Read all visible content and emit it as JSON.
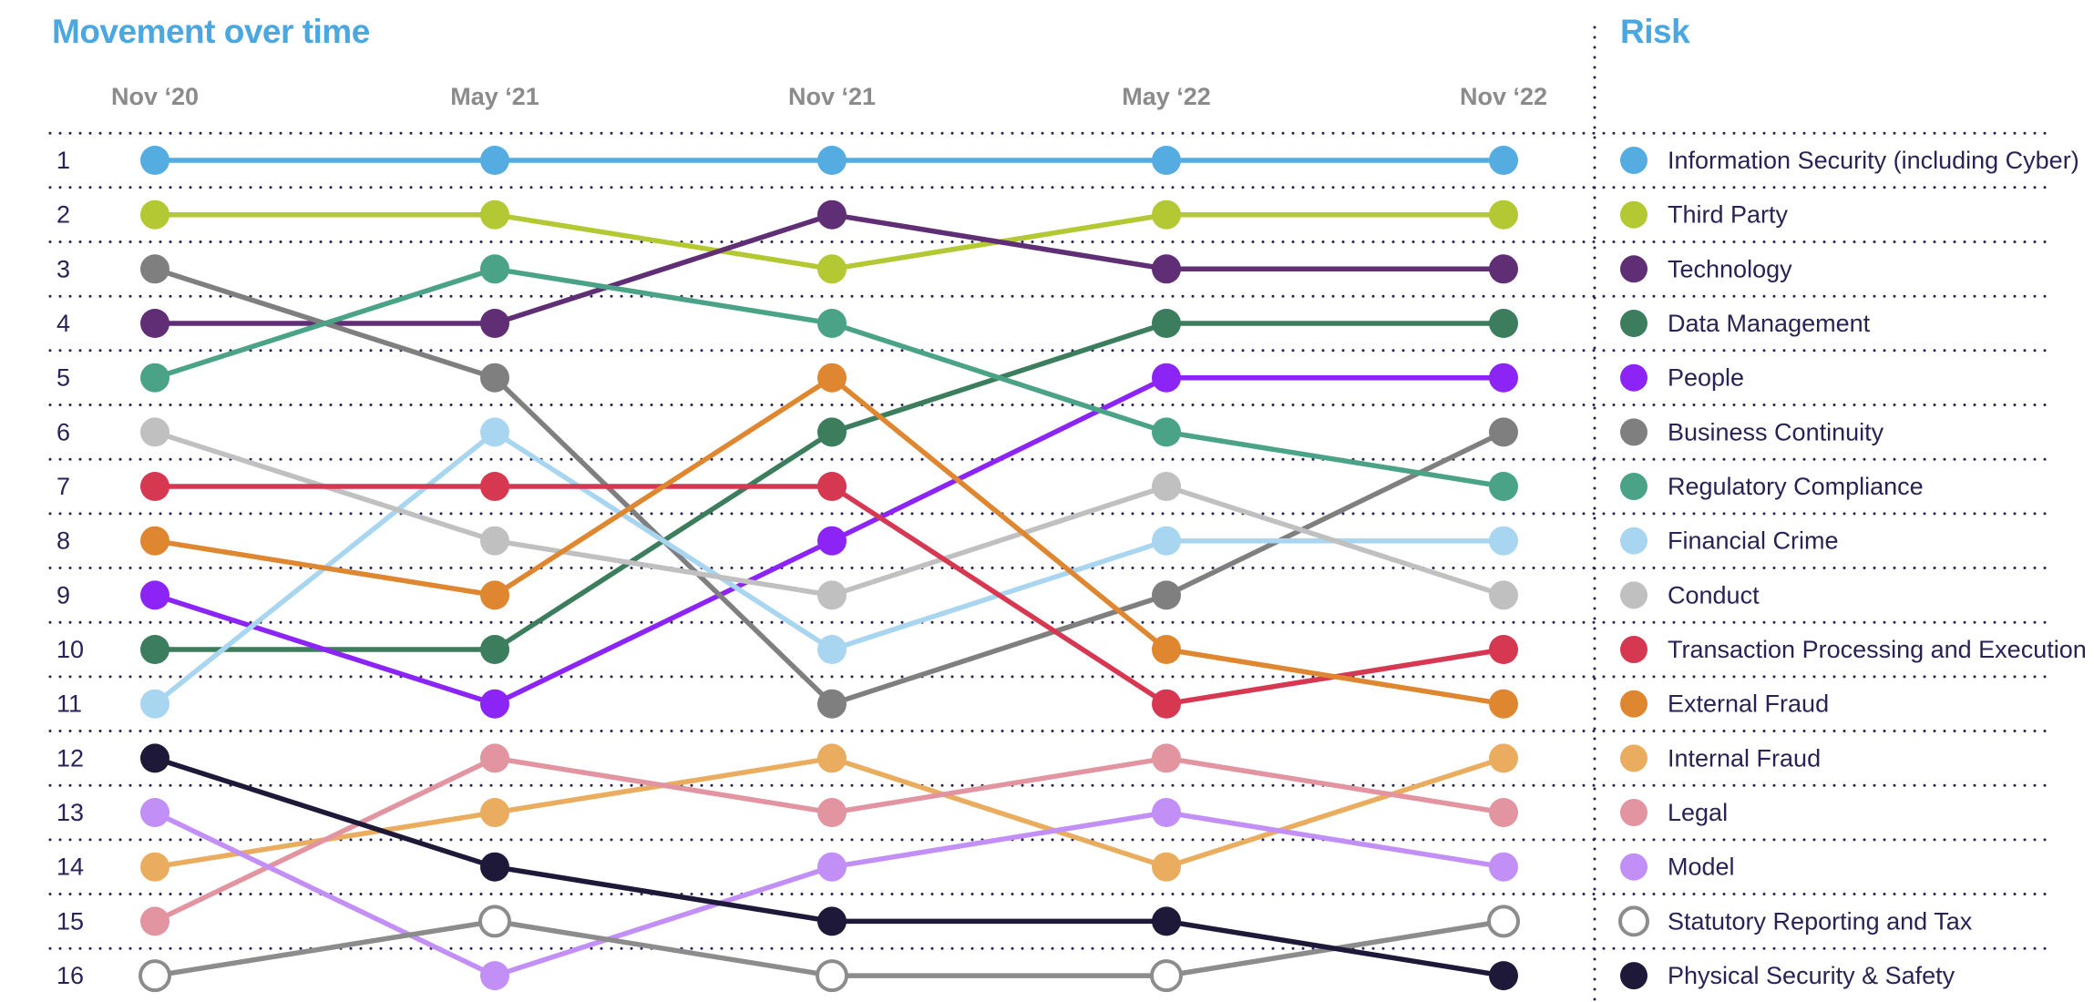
{
  "title": "Movement over time",
  "legend_title": "Risk",
  "colors": {
    "accent_blue": "#4BA7E0",
    "axis_label_gray": "#8B8B8B",
    "text_navy": "#292254",
    "grid_dot_navy": "#292254",
    "open_circle_ring": "#8C8C8C"
  },
  "chart_data": {
    "type": "line",
    "subtype": "bump-ranking",
    "title": "Movement over time",
    "legend_title": "Risk",
    "x": [
      "Nov ‘20",
      "May ‘21",
      "Nov ‘21",
      "May ‘22",
      "Nov ‘22"
    ],
    "ranks": [
      1,
      2,
      3,
      4,
      5,
      6,
      7,
      8,
      9,
      10,
      11,
      12,
      13,
      14,
      15,
      16
    ],
    "ylim": [
      1,
      16
    ],
    "grid": "dotted",
    "legend_position": "right",
    "series": [
      {
        "name": "Information Security (including Cyber)",
        "color": "#54ACE0",
        "open": false,
        "ranks": [
          1,
          1,
          1,
          1,
          1
        ]
      },
      {
        "name": "Third Party",
        "color": "#B3C832",
        "open": false,
        "ranks": [
          2,
          2,
          3,
          2,
          2
        ]
      },
      {
        "name": "Technology",
        "color": "#5F2E74",
        "open": false,
        "ranks": [
          4,
          4,
          2,
          3,
          3
        ]
      },
      {
        "name": "Data Management",
        "color": "#3B7D5C",
        "open": false,
        "ranks": [
          10,
          10,
          6,
          4,
          4
        ]
      },
      {
        "name": "People",
        "color": "#8B24F4",
        "open": false,
        "ranks": [
          9,
          11,
          8,
          5,
          5
        ]
      },
      {
        "name": "Business Continuity",
        "color": "#7F7F7F",
        "open": false,
        "ranks": [
          3,
          5,
          11,
          9,
          6
        ]
      },
      {
        "name": "Regulatory Compliance",
        "color": "#4BA387",
        "open": false,
        "ranks": [
          5,
          3,
          4,
          6,
          7
        ]
      },
      {
        "name": "Financial Crime",
        "color": "#A8D5F0",
        "open": false,
        "ranks": [
          11,
          6,
          10,
          8,
          8
        ]
      },
      {
        "name": "Conduct",
        "color": "#C0C0C0",
        "open": false,
        "ranks": [
          6,
          8,
          9,
          7,
          9
        ]
      },
      {
        "name": "Transaction Processing and Execution",
        "color": "#D63852",
        "open": false,
        "ranks": [
          7,
          7,
          7,
          11,
          10
        ]
      },
      {
        "name": "External Fraud",
        "color": "#DE8630",
        "open": false,
        "ranks": [
          8,
          9,
          5,
          10,
          11
        ]
      },
      {
        "name": "Internal Fraud",
        "color": "#EAAD5F",
        "open": false,
        "ranks": [
          14,
          13,
          12,
          14,
          12
        ]
      },
      {
        "name": "Legal",
        "color": "#E294A1",
        "open": false,
        "ranks": [
          15,
          12,
          13,
          12,
          13
        ]
      },
      {
        "name": "Model",
        "color": "#C28FF7",
        "open": false,
        "ranks": [
          13,
          16,
          14,
          13,
          14
        ]
      },
      {
        "name": "Statutory Reporting and Tax",
        "color": "#8C8C8C",
        "open": true,
        "ranks": [
          16,
          15,
          16,
          16,
          15
        ]
      },
      {
        "name": "Physical Security & Safety",
        "color": "#1F1939",
        "open": false,
        "ranks": [
          12,
          14,
          15,
          15,
          16
        ]
      }
    ]
  }
}
